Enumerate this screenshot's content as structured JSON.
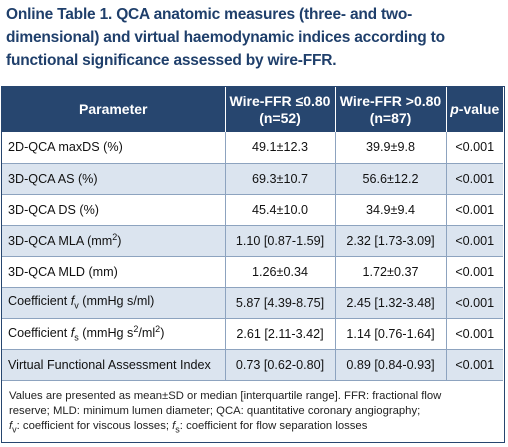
{
  "caption": {
    "line1": "Online Table 1. QCA anatomic measures (three- and two-",
    "line2": "dimensional) and virtual haemodynamic indices according to",
    "line3": "functional significance assessed by wire-FFR."
  },
  "table": {
    "headers": {
      "parameter": "Parameter",
      "col1_line1": "Wire-FFR ≤0.80",
      "col1_line2": "(n=52)",
      "col2_line1": "Wire-FFR >0.80",
      "col2_line2": "(n=87)",
      "pvalue_p": "p",
      "pvalue_rest": "-value"
    },
    "rows": [
      {
        "parameter": "2D-QCA maxDS (%)",
        "le080": "49.1±12.3",
        "gt080": "39.9±9.8",
        "p": "<0.001"
      },
      {
        "parameter": "3D-QCA AS (%)",
        "le080": "69.3±10.7",
        "gt080": "56.6±12.2",
        "p": "<0.001"
      },
      {
        "parameter": "3D-QCA DS (%)",
        "le080": "45.4±10.0",
        "gt080": "34.9±9.4",
        "p": "<0.001"
      },
      {
        "parameter_pre": "3D-QCA MLA (mm",
        "parameter_sup": "2",
        "parameter_post": ")",
        "le080": "1.10 [0.87-1.59]",
        "gt080": "2.32 [1.73-3.09]",
        "p": "<0.001"
      },
      {
        "parameter": "3D-QCA MLD (mm)",
        "le080": "1.26±0.34",
        "gt080": "1.72±0.37",
        "p": "<0.001"
      },
      {
        "parameter_pre": "Coefficient ",
        "parameter_var": "f",
        "parameter_sub": "v",
        "parameter_post": " (mmHg s/ml)",
        "le080": "5.87 [4.39-8.75]",
        "gt080": "2.45 [1.32-3.48]",
        "p": "<0.001"
      },
      {
        "parameter_pre": "Coefficient ",
        "parameter_var": "f",
        "parameter_sub": "s",
        "parameter_mid": " (mmHg s",
        "parameter_sup1": "2",
        "parameter_mid2": "/ml",
        "parameter_sup2": "2",
        "parameter_post": ")",
        "le080": "2.61 [2.11-3.42]",
        "gt080": "1.14 [0.76-1.64]",
        "p": "<0.001"
      },
      {
        "parameter": "Virtual Functional Assessment Index",
        "le080": "0.73 [0.62-0.80]",
        "gt080": "0.89 [0.84-0.93]",
        "p": "<0.001"
      }
    ]
  },
  "footnote": {
    "line1": "Values are presented as mean±SD or median [interquartile range]. FFR: fractional flow",
    "line2": "reserve; MLD: minimum lumen diameter; QCA: quantitative coronary angiography;",
    "fv_var": "f",
    "fv_sub": "v",
    "fv_text": ": coefficient for viscous losses; ",
    "fs_var": "f",
    "fs_sub": "s",
    "fs_text": ": coefficient for flow separation losses"
  }
}
